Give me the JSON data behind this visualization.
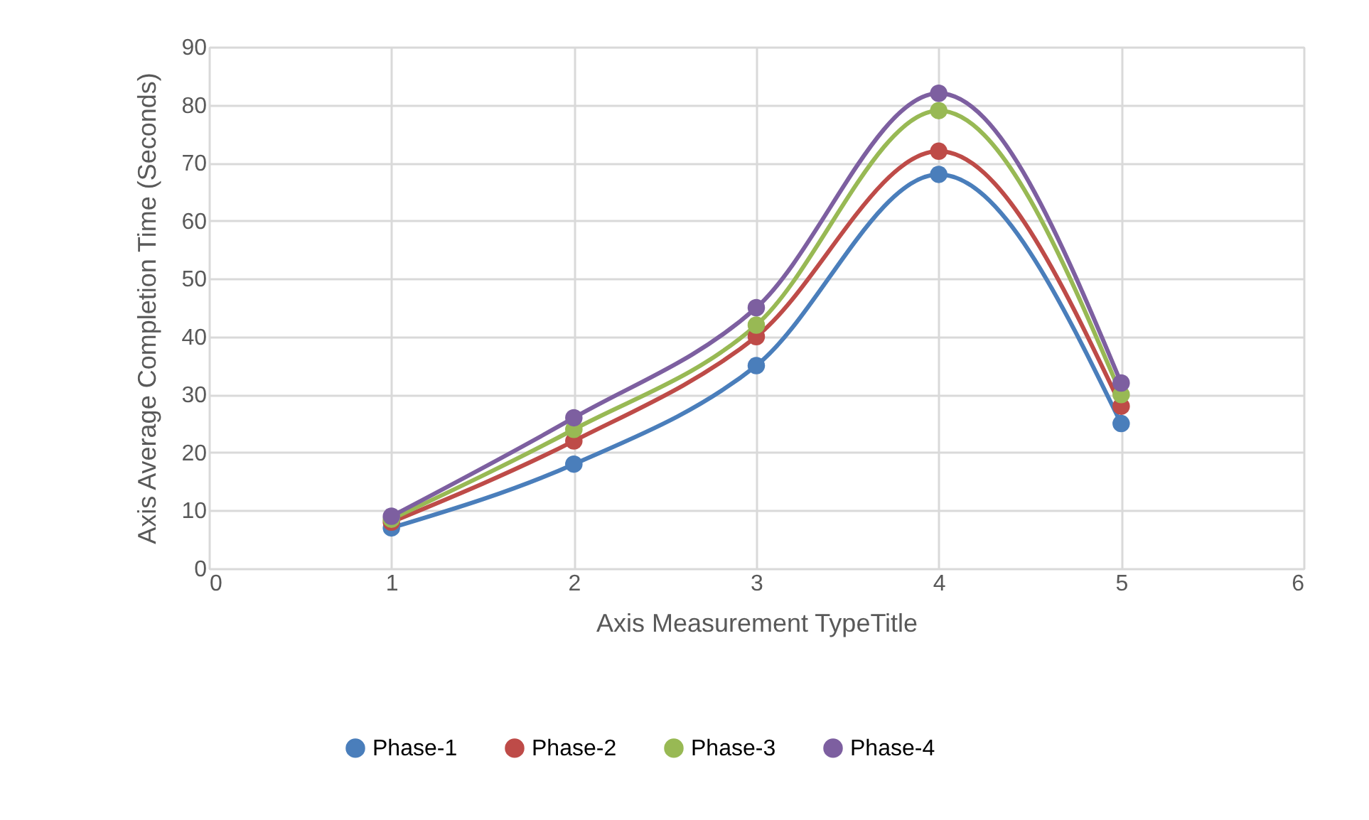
{
  "chart_data": {
    "type": "line",
    "xlabel": "Axis Measurement TypeTitle",
    "ylabel": "Axis Average Completion Time (Seconds)",
    "x": [
      1,
      2,
      3,
      4,
      5
    ],
    "xlim": [
      0,
      6
    ],
    "xticks": [
      0,
      1,
      2,
      3,
      4,
      5,
      6
    ],
    "ylim": [
      0,
      90
    ],
    "yticks": [
      0,
      10,
      20,
      30,
      40,
      50,
      60,
      70,
      80,
      90
    ],
    "grid": true,
    "legend": "bottom",
    "marker": "circle",
    "line_style": "solid",
    "series": [
      {
        "name": "Phase-1",
        "color": "#4a7ebb",
        "values": [
          7,
          18,
          35,
          68,
          25
        ]
      },
      {
        "name": "Phase-2",
        "color": "#be4b48",
        "values": [
          8,
          22,
          40,
          72,
          28
        ]
      },
      {
        "name": "Phase-3",
        "color": "#98b954",
        "values": [
          8.5,
          24,
          42,
          79,
          30
        ]
      },
      {
        "name": "Phase-4",
        "color": "#7d5fa0",
        "values": [
          9,
          26,
          45,
          82,
          32
        ]
      }
    ]
  }
}
